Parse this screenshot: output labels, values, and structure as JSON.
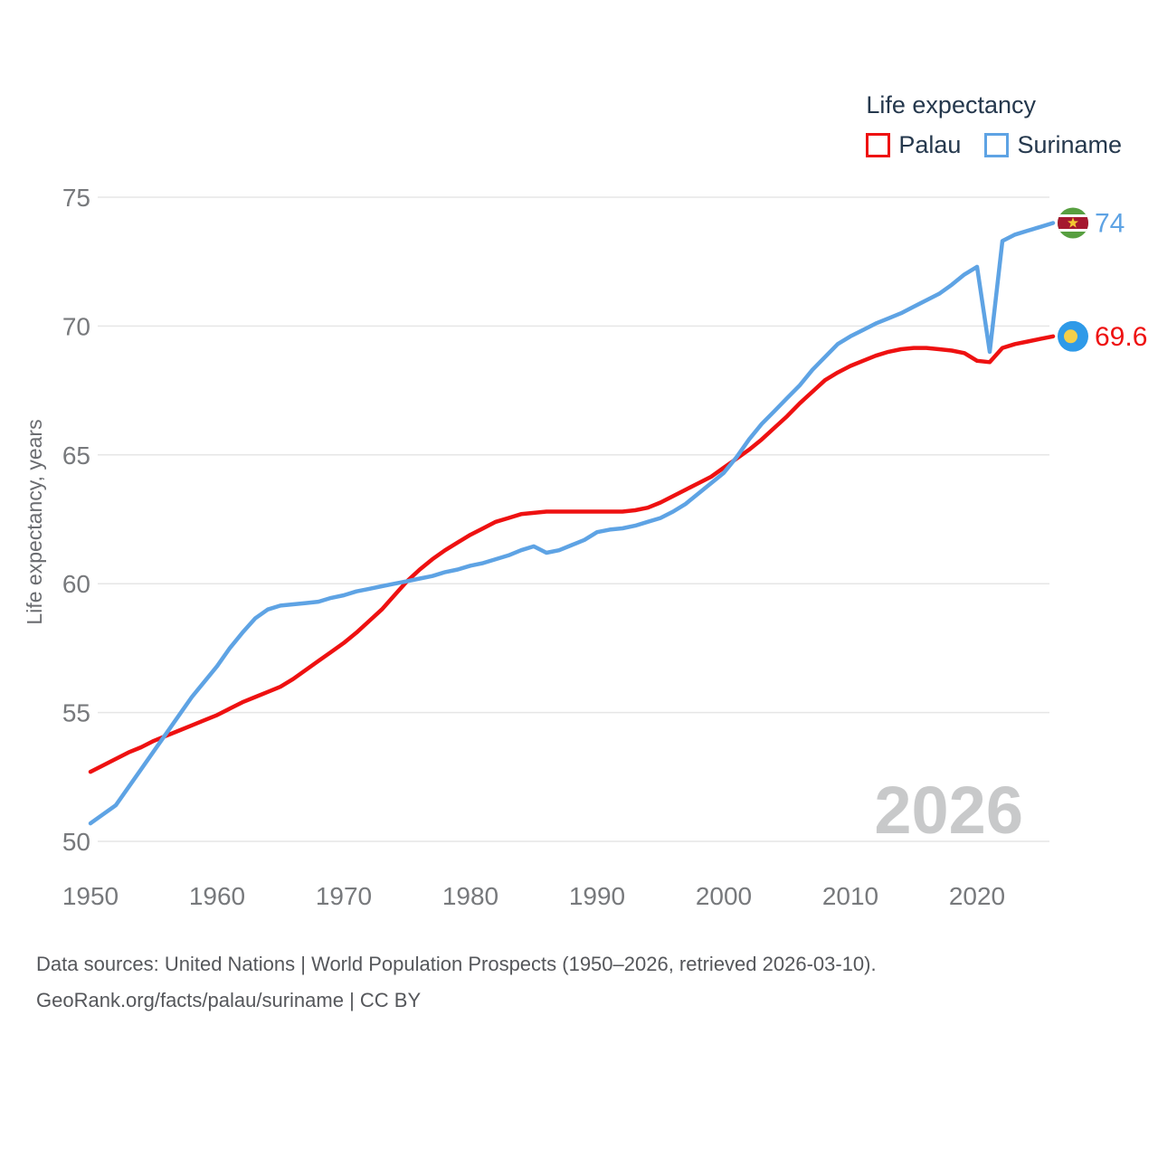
{
  "legend": {
    "title": "Life expectancy",
    "items": [
      {
        "label": "Palau",
        "color": "#ee1111"
      },
      {
        "label": "Suriname",
        "color": "#5ea3e4"
      }
    ]
  },
  "chart_data": {
    "type": "line",
    "title": "Life expectancy",
    "xlabel": "",
    "ylabel": "Life expectancy, years",
    "xlim": [
      1950,
      2026
    ],
    "ylim": [
      50,
      75
    ],
    "xticks": [
      1950,
      1960,
      1970,
      1980,
      1990,
      2000,
      2010,
      2020
    ],
    "yticks": [
      50,
      55,
      60,
      65,
      70,
      75
    ],
    "grid": "horizontal-only",
    "legend_position": "top-right",
    "watermark": "2026",
    "x": [
      1950,
      1951,
      1952,
      1953,
      1954,
      1955,
      1956,
      1957,
      1958,
      1959,
      1960,
      1961,
      1962,
      1963,
      1964,
      1965,
      1966,
      1967,
      1968,
      1969,
      1970,
      1971,
      1972,
      1973,
      1974,
      1975,
      1976,
      1977,
      1978,
      1979,
      1980,
      1981,
      1982,
      1983,
      1984,
      1985,
      1986,
      1987,
      1988,
      1989,
      1990,
      1991,
      1992,
      1993,
      1994,
      1995,
      1996,
      1997,
      1998,
      1999,
      2000,
      2001,
      2002,
      2003,
      2004,
      2005,
      2006,
      2007,
      2008,
      2009,
      2010,
      2011,
      2012,
      2013,
      2014,
      2015,
      2016,
      2017,
      2018,
      2019,
      2020,
      2021,
      2022,
      2023,
      2024,
      2025,
      2026
    ],
    "series": [
      {
        "name": "Palau",
        "color": "#ee1111",
        "end_label": "69.6",
        "end_value": 69.6,
        "flag_icon": "palau-flag-icon",
        "values": [
          52.7,
          52.95,
          53.2,
          53.45,
          53.65,
          53.9,
          54.1,
          54.3,
          54.5,
          54.7,
          54.9,
          55.15,
          55.4,
          55.6,
          55.8,
          56.0,
          56.3,
          56.65,
          57.0,
          57.35,
          57.7,
          58.1,
          58.55,
          59.0,
          59.55,
          60.1,
          60.55,
          60.95,
          61.3,
          61.6,
          61.9,
          62.15,
          62.4,
          62.55,
          62.7,
          62.75,
          62.8,
          62.8,
          62.8,
          62.8,
          62.8,
          62.8,
          62.8,
          62.85,
          62.95,
          63.15,
          63.4,
          63.65,
          63.9,
          64.15,
          64.5,
          64.85,
          65.2,
          65.6,
          66.05,
          66.5,
          67.0,
          67.45,
          67.9,
          68.2,
          68.45,
          68.65,
          68.85,
          69.0,
          69.1,
          69.15,
          69.15,
          69.1,
          69.05,
          68.95,
          68.65,
          68.6,
          69.15,
          69.3,
          69.4,
          69.5,
          69.6
        ]
      },
      {
        "name": "Suriname",
        "color": "#5ea3e4",
        "end_label": "74",
        "end_value": 74,
        "flag_icon": "suriname-flag-icon",
        "values": [
          50.7,
          51.05,
          51.4,
          52.1,
          52.8,
          53.5,
          54.2,
          54.9,
          55.6,
          56.2,
          56.8,
          57.5,
          58.1,
          58.65,
          59.0,
          59.15,
          59.2,
          59.25,
          59.3,
          59.45,
          59.55,
          59.7,
          59.8,
          59.9,
          60.0,
          60.1,
          60.2,
          60.3,
          60.45,
          60.55,
          60.7,
          60.8,
          60.95,
          61.1,
          61.3,
          61.45,
          61.2,
          61.3,
          61.5,
          61.7,
          62.0,
          62.1,
          62.15,
          62.25,
          62.4,
          62.55,
          62.8,
          63.1,
          63.5,
          63.9,
          64.3,
          64.9,
          65.6,
          66.2,
          66.7,
          67.2,
          67.7,
          68.3,
          68.8,
          69.3,
          69.6,
          69.85,
          70.1,
          70.3,
          70.5,
          70.75,
          71.0,
          71.25,
          71.6,
          72.0,
          72.3,
          69.0,
          73.3,
          73.55,
          73.7,
          73.85,
          74.0
        ]
      }
    ]
  },
  "flags": {
    "palau": {
      "field": "#2e9ae8",
      "disk": "#f2cf4a"
    },
    "suriname": {
      "green": "#579f40",
      "white": "#ffffff",
      "red": "#a5182f",
      "star": "#f2c832"
    }
  },
  "colors": {
    "grid": "#e6e6e6",
    "tick_text": "#77797c",
    "axis_title": "#6a6c70",
    "watermark": "#c8c9ca",
    "legend_text": "#25384d",
    "footer_text": "#55575b"
  },
  "footer": {
    "line1": "Data sources: United Nations | World Population Prospects (1950–2026, retrieved 2026-03-10).",
    "line2": "GeoRank.org/facts/palau/suriname | CC BY"
  }
}
